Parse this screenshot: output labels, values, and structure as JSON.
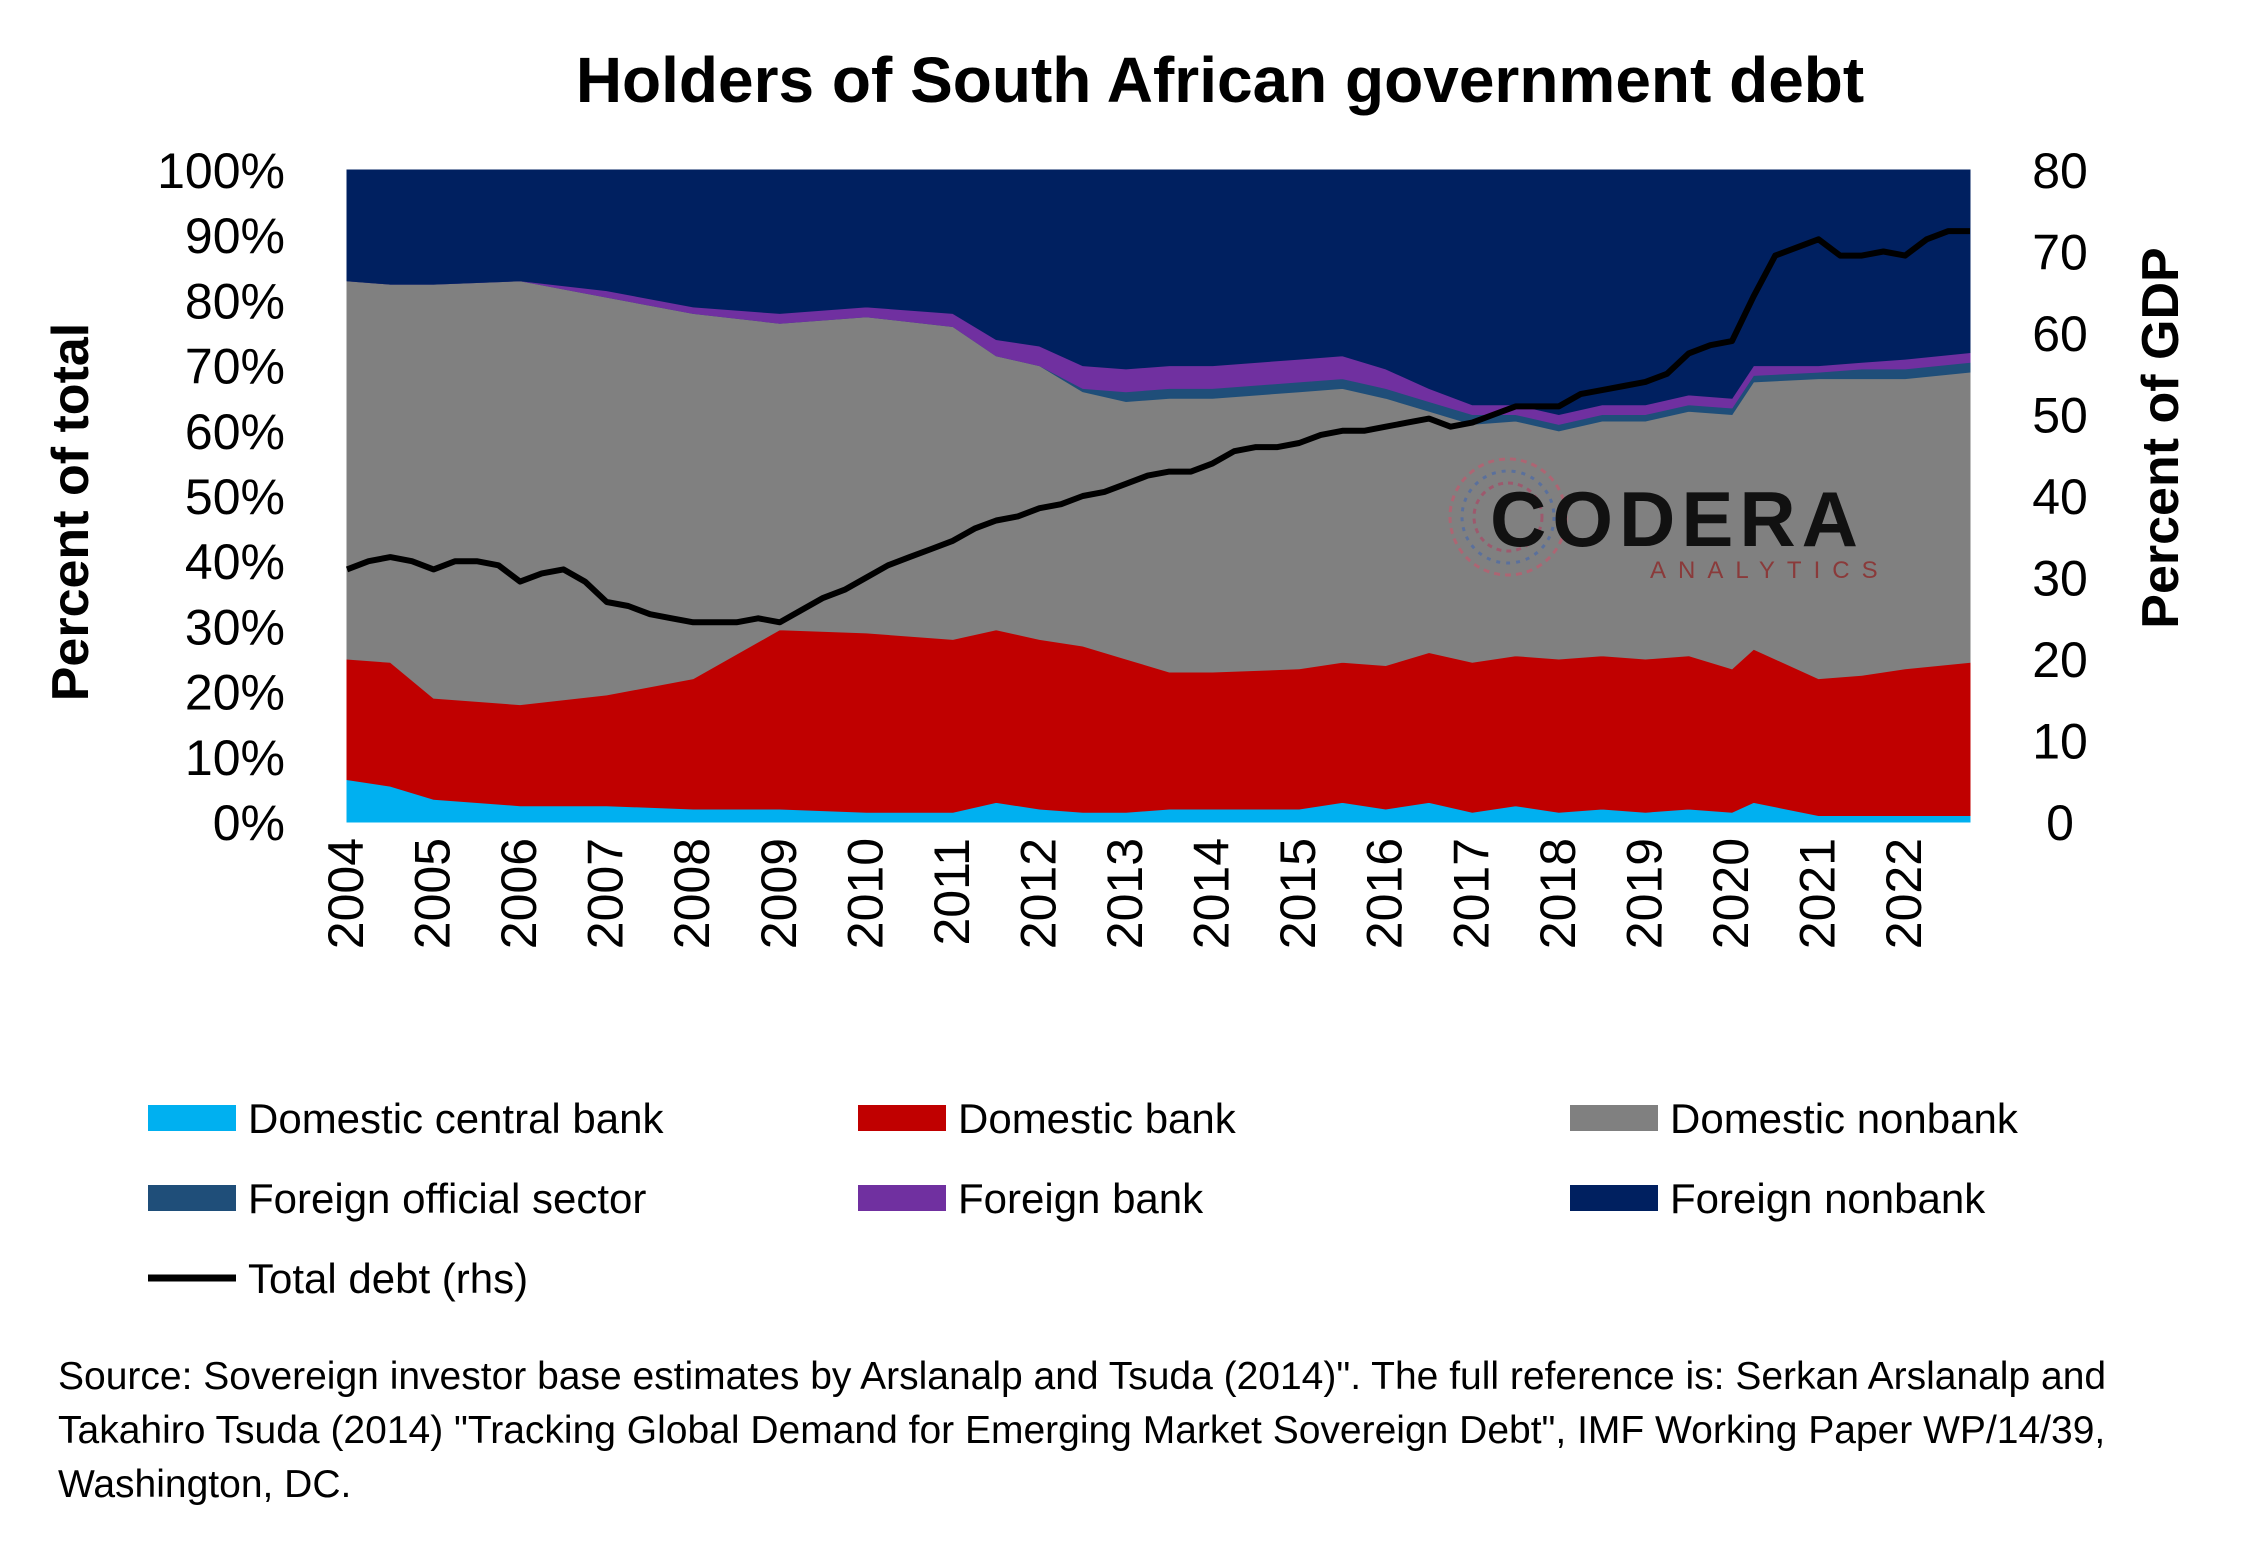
{
  "chart_data": {
    "type": "area",
    "stacked": true,
    "title": "Holders of South African government debt",
    "ylabel": "Percent of total",
    "y2label": "Percent of GDP",
    "ylim": [
      0,
      100
    ],
    "y2lim": [
      0,
      80
    ],
    "yticks": [
      "0%",
      "10%",
      "20%",
      "30%",
      "40%",
      "50%",
      "60%",
      "70%",
      "80%",
      "90%",
      "100%"
    ],
    "y2ticks": [
      "0",
      "10",
      "20",
      "30",
      "40",
      "50",
      "60",
      "70",
      "80"
    ],
    "xticks": [
      "2004",
      "2005",
      "2006",
      "2007",
      "2008",
      "2009",
      "2010",
      "2011",
      "2012",
      "2013",
      "2014",
      "2015",
      "2016",
      "2017",
      "2018",
      "2019",
      "2020",
      "2021",
      "2022"
    ],
    "xlim": [
      2004.0,
      2022.75
    ],
    "legend_position": "bottom",
    "series": [
      {
        "name": "Domestic central bank",
        "color": "#00b0f0",
        "x": [
          2004,
          2004.5,
          2005,
          2006,
          2007,
          2008,
          2009,
          2010,
          2011,
          2011.5,
          2012,
          2012.5,
          2013,
          2013.5,
          2014,
          2015,
          2015.5,
          2016,
          2016.5,
          2017,
          2017.5,
          2018,
          2018.5,
          2019,
          2019.5,
          2020,
          2020.25,
          2021,
          2021.5,
          2022,
          2022.75
        ],
        "values": [
          6.5,
          5.5,
          3.5,
          2.5,
          2.5,
          2,
          2,
          1.5,
          1.5,
          3,
          2,
          1.5,
          1.5,
          2,
          2,
          2,
          3,
          2,
          3,
          1.5,
          2.5,
          1.5,
          2,
          1.5,
          2,
          1.5,
          3,
          1,
          1,
          1,
          1
        ]
      },
      {
        "name": "Domestic bank",
        "color": "#c00000",
        "x": [
          2004,
          2004.5,
          2005,
          2006,
          2007,
          2008,
          2009,
          2010,
          2011,
          2011.5,
          2012,
          2012.5,
          2013,
          2013.5,
          2014,
          2015,
          2015.5,
          2016,
          2016.5,
          2017,
          2017.5,
          2018,
          2018.5,
          2019,
          2019.5,
          2020,
          2020.25,
          2021,
          2021.5,
          2022,
          2022.75
        ],
        "values": [
          18.5,
          19,
          15.5,
          15.5,
          17,
          20,
          27.5,
          27.5,
          26.5,
          26.5,
          26,
          25.5,
          23.5,
          21,
          21,
          21.5,
          21.5,
          22,
          23,
          23,
          23,
          23.5,
          23.5,
          23.5,
          23.5,
          22,
          23.5,
          21,
          21.5,
          22.5,
          23.5
        ]
      },
      {
        "name": "Domestic nonbank",
        "color": "#808080",
        "x": [
          2004,
          2004.5,
          2005,
          2006,
          2007,
          2008,
          2009,
          2010,
          2011,
          2011.5,
          2012,
          2012.5,
          2013,
          2013.5,
          2014,
          2015,
          2015.5,
          2016,
          2016.5,
          2017,
          2017.5,
          2018,
          2018.5,
          2019,
          2019.5,
          2020,
          2020.25,
          2021,
          2021.5,
          2022,
          2022.75
        ],
        "values": [
          58,
          58,
          63.5,
          65,
          61,
          56,
          47,
          48.5,
          48,
          42,
          42,
          39,
          39.5,
          42,
          42,
          42.5,
          42,
          41,
          37,
          36.5,
          36,
          35,
          36,
          36.5,
          37.5,
          39,
          41,
          46,
          45.5,
          44.5,
          44.5
        ]
      },
      {
        "name": "Foreign official sector",
        "color": "#1f4e79",
        "x": [
          2004,
          2004.5,
          2005,
          2006,
          2007,
          2008,
          2009,
          2010,
          2011,
          2011.5,
          2012,
          2012.5,
          2013,
          2013.5,
          2014,
          2015,
          2015.5,
          2016,
          2016.5,
          2017,
          2017.5,
          2018,
          2018.5,
          2019,
          2019.5,
          2020,
          2020.25,
          2021,
          2021.5,
          2022,
          2022.75
        ],
        "values": [
          0,
          0,
          0,
          0,
          0,
          0,
          0,
          0,
          0,
          0,
          0,
          0.5,
          1.5,
          1.5,
          1.5,
          1.5,
          1.5,
          1.5,
          1.5,
          1.5,
          1,
          1,
          1,
          1,
          1,
          1,
          1,
          1,
          1.5,
          1.5,
          1.5
        ]
      },
      {
        "name": "Foreign bank",
        "color": "#7030a0",
        "x": [
          2004,
          2004.5,
          2005,
          2006,
          2007,
          2008,
          2009,
          2010,
          2011,
          2011.5,
          2012,
          2012.5,
          2013,
          2013.5,
          2014,
          2015,
          2015.5,
          2016,
          2016.5,
          2017,
          2017.5,
          2018,
          2018.5,
          2019,
          2019.5,
          2020,
          2020.25,
          2021,
          2021.5,
          2022,
          2022.75
        ],
        "values": [
          0,
          0,
          0,
          0,
          1,
          1,
          1.5,
          1.5,
          2,
          2.5,
          3,
          3.5,
          3.5,
          3.5,
          3.5,
          3.5,
          3.5,
          3,
          2,
          1.5,
          1.5,
          1.5,
          1.5,
          1.5,
          1.5,
          1.5,
          1.5,
          1,
          1,
          1.5,
          1.5
        ]
      },
      {
        "name": "Foreign nonbank",
        "color": "#002060",
        "x": [
          2004,
          2004.5,
          2005,
          2006,
          2007,
          2008,
          2009,
          2010,
          2011,
          2011.5,
          2012,
          2012.5,
          2013,
          2013.5,
          2014,
          2015,
          2015.5,
          2016,
          2016.5,
          2017,
          2017.5,
          2018,
          2018.5,
          2019,
          2019.5,
          2020,
          2020.25,
          2021,
          2021.5,
          2022,
          2022.75
        ],
        "values": [
          17,
          17.5,
          17.5,
          17,
          18.5,
          21,
          22,
          21,
          22,
          26,
          27,
          30,
          30.5,
          30,
          30,
          29,
          28.5,
          30.5,
          33.5,
          36,
          36,
          37.5,
          36,
          36,
          34.5,
          35,
          30,
          30,
          29.5,
          29,
          28
        ]
      },
      {
        "name": "Total debt (rhs)",
        "color": "#000000",
        "axis": "right",
        "type": "line",
        "x": [
          2004,
          2004.25,
          2004.5,
          2004.75,
          2005,
          2005.25,
          2005.5,
          2005.75,
          2006,
          2006.25,
          2006.5,
          2006.75,
          2007,
          2007.25,
          2007.5,
          2007.75,
          2008,
          2008.25,
          2008.5,
          2008.75,
          2009,
          2009.25,
          2009.5,
          2009.75,
          2010,
          2010.25,
          2010.5,
          2010.75,
          2011,
          2011.25,
          2011.5,
          2011.75,
          2012,
          2012.25,
          2012.5,
          2012.75,
          2013,
          2013.25,
          2013.5,
          2013.75,
          2014,
          2014.25,
          2014.5,
          2014.75,
          2015,
          2015.25,
          2015.5,
          2015.75,
          2016,
          2016.25,
          2016.5,
          2016.75,
          2017,
          2017.25,
          2017.5,
          2017.75,
          2018,
          2018.25,
          2018.5,
          2018.75,
          2019,
          2019.25,
          2019.5,
          2019.75,
          2020,
          2020.25,
          2020.5,
          2020.75,
          2021,
          2021.25,
          2021.5,
          2021.75,
          2022,
          2022.25,
          2022.5,
          2022.75
        ],
        "values": [
          31,
          32,
          32.5,
          32,
          31,
          32,
          32,
          31.5,
          29.5,
          30.5,
          31,
          29.5,
          27,
          26.5,
          25.5,
          25,
          24.5,
          24.5,
          24.5,
          25,
          24.5,
          26,
          27.5,
          28.5,
          30,
          31.5,
          32.5,
          33.5,
          34.5,
          36,
          37,
          37.5,
          38.5,
          39,
          40,
          40.5,
          41.5,
          42.5,
          43,
          43,
          44,
          45.5,
          46,
          46,
          46.5,
          47.5,
          48,
          48,
          48.5,
          49,
          49.5,
          48.5,
          49,
          50,
          51,
          51,
          51,
          52.5,
          53,
          53.5,
          54,
          55,
          57.5,
          58.5,
          59,
          64.5,
          69.5,
          70.5,
          71.5,
          69.5,
          69.5,
          70,
          69.5,
          71.5,
          72.5,
          72.5
        ]
      }
    ],
    "watermark": {
      "main": "CODERA",
      "sub": "ANALYTICS"
    }
  },
  "source": "Source: Sovereign investor base estimates by Arslanalp and Tsuda (2014)\". The full reference is: Serkan Arslanalp and Takahiro Tsuda (2014) \"Tracking Global Demand for Emerging Market Sovereign Debt\", IMF Working Paper WP/14/39, Washington, DC."
}
